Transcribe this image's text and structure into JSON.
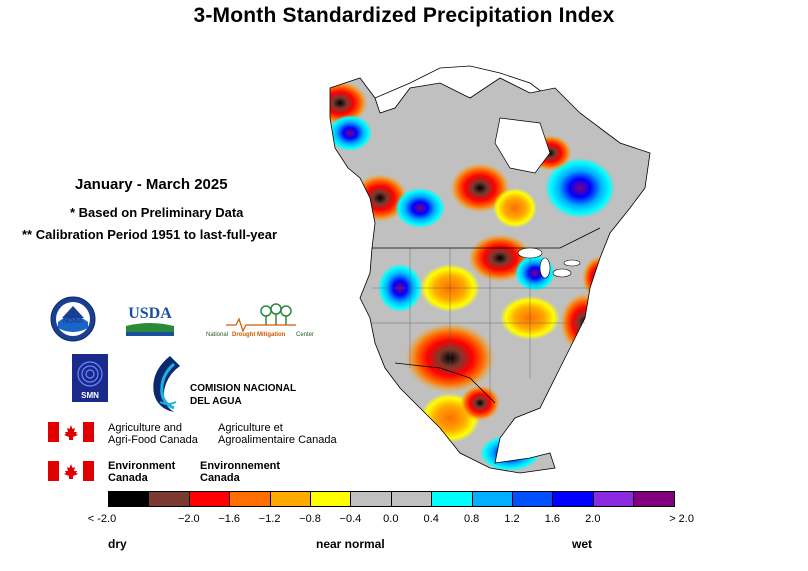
{
  "title": "3-Month Standardized Precipitation Index",
  "period": "January - March 2025",
  "note_preliminary": "* Based on Preliminary Data",
  "note_calibration": "** Calibration Period 1951 to last-full-year",
  "logos": {
    "noaa": "NOAA",
    "usda": "USDA",
    "ndmc_part1": "National",
    "ndmc_part2": "Drought Mitigation",
    "ndmc_part3": "Center",
    "smn": "SMN",
    "conagua_line1": "COMISION NACIONAL",
    "conagua_line2": "DEL AGUA",
    "aafc_en_line1": "Agriculture and",
    "aafc_en_line2": "Agri-Food Canada",
    "aafc_fr_line1": "Agriculture et",
    "aafc_fr_line2": "Agroalimentaire Canada",
    "ec_en_line1": "Environment",
    "ec_en_line2": "Canada",
    "ec_fr_line1": "Environnement",
    "ec_fr_line2": "Canada"
  },
  "legend": {
    "colors": [
      "#000000",
      "#7a3a2f",
      "#ff0000",
      "#ff6e00",
      "#ffaa00",
      "#ffff00",
      "#c0c0c0",
      "#c0c0c0",
      "#00ffff",
      "#00b0ff",
      "#0050ff",
      "#0000ff",
      "#8a2be2",
      "#800080"
    ],
    "ticks": [
      "< -2.0",
      "−2.0",
      "−1.6",
      "−1.2",
      "−0.8",
      "−0.4",
      "0.0",
      "0.4",
      "0.8",
      "1.2",
      "1.6",
      "2.0",
      "> 2.0"
    ],
    "dry": "dry",
    "near_normal": "near normal",
    "wet": "wet"
  }
}
